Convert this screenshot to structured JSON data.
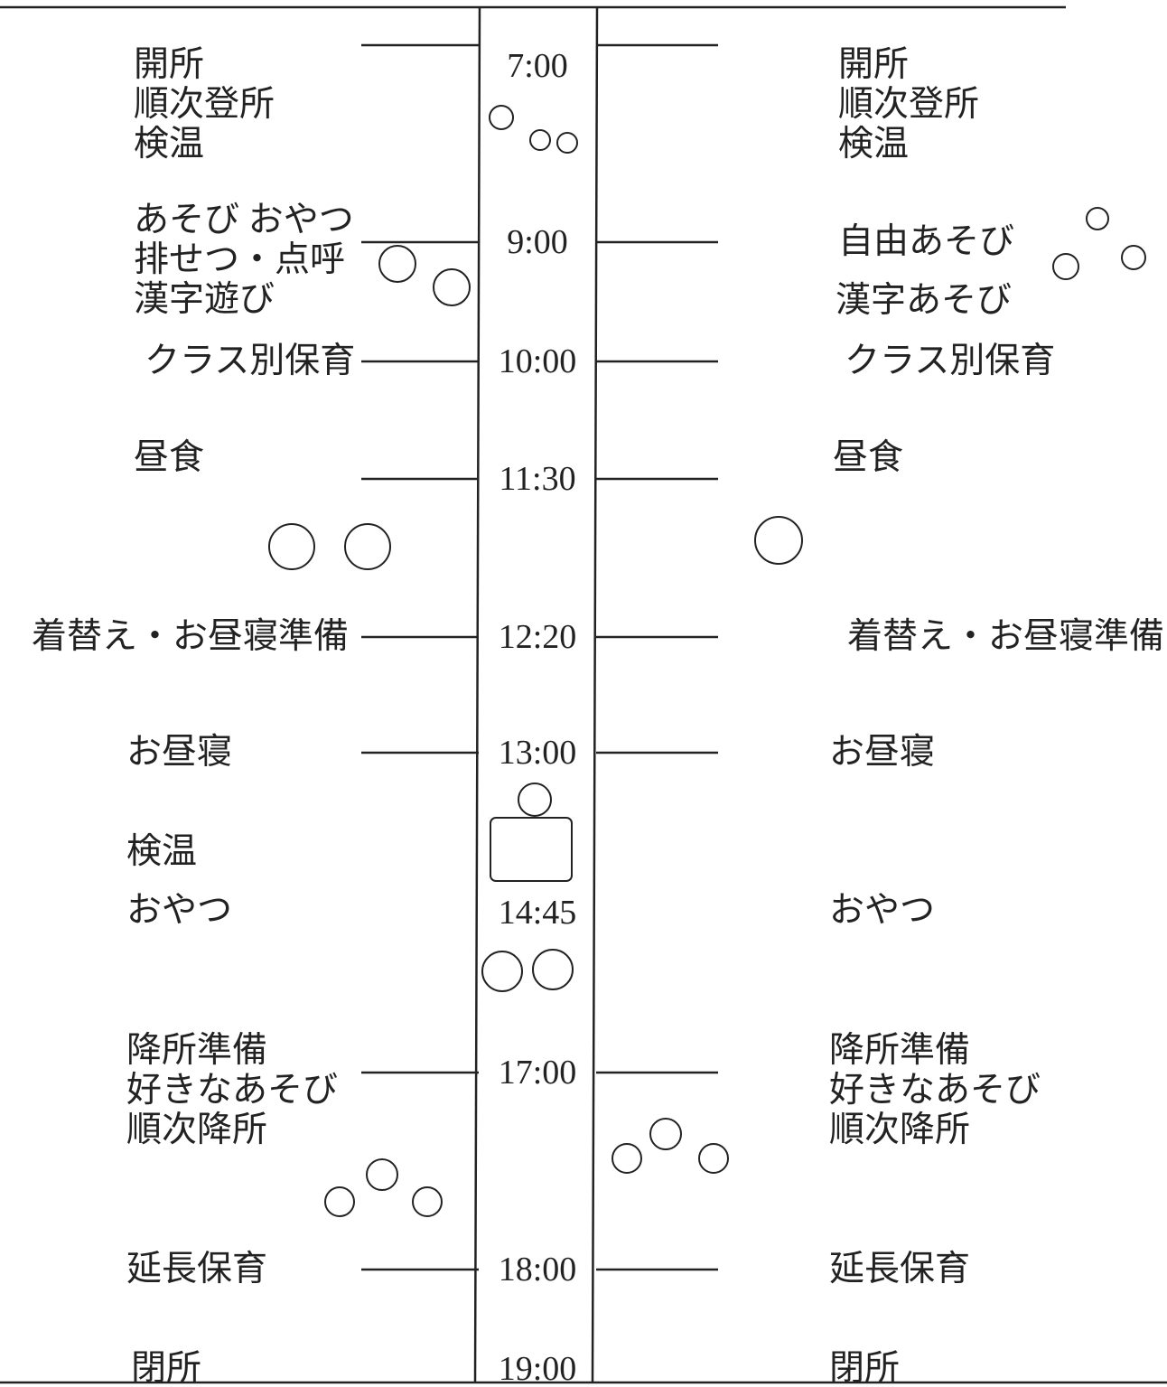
{
  "times": [
    "7:00",
    "9:00",
    "10:00",
    "11:30",
    "12:20",
    "13:00",
    "14:45",
    "17:00",
    "18:00",
    "19:00"
  ],
  "left": [
    [
      "開所",
      "順次登所",
      "検温"
    ],
    [
      "あそび おやつ",
      "排せつ・点呼",
      "漢字遊び"
    ],
    [
      "クラス別保育"
    ],
    [
      "昼食"
    ],
    [
      "着替え・お昼寝準備"
    ],
    [
      "お昼寝"
    ],
    [
      "検温"
    ],
    [
      "おやつ"
    ],
    [
      "降所準備",
      "好きなあそび",
      "順次降所"
    ],
    [
      "延長保育"
    ],
    [
      "閉所"
    ]
  ],
  "right": [
    [
      "開所",
      "順次登所",
      "検温"
    ],
    [
      "自由あそび"
    ],
    [
      "漢字あそび"
    ],
    [
      "クラス別保育"
    ],
    [
      "昼食"
    ],
    [
      "着替え・お昼寝準備"
    ],
    [
      "お昼寝"
    ],
    [
      "おやつ"
    ],
    [
      "降所準備",
      "好きなあそび",
      "順次降所"
    ],
    [
      "延長保育"
    ],
    [
      "閉所"
    ]
  ]
}
